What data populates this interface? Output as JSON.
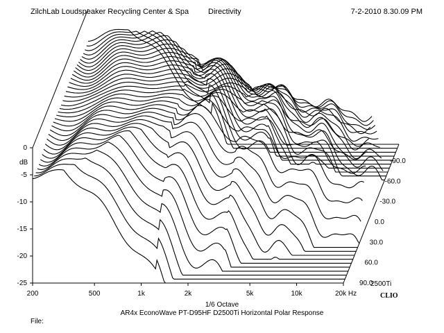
{
  "header": {
    "left": "ZilchLab Loudspeaker Recycling Center & Spa",
    "center": "Directivity",
    "right": "7-2-2010 8.30.09 PM"
  },
  "footer": {
    "octave": "1/6 Octave",
    "caption": "AR4x EconoWave PT-D95HF D2500Ti Horizontal Polar Response",
    "file_label": "File:"
  },
  "brand": "CLIO",
  "chart_data": {
    "type": "waterfall",
    "ylabel": "dB",
    "y_ticks": [
      "0",
      "-5",
      "-10",
      "-15",
      "-20",
      "-25"
    ],
    "ylim": [
      -25,
      0
    ],
    "x_scale": "log",
    "x_ticks": [
      "200",
      "500",
      "1k",
      "2k",
      "5k",
      "10k",
      "20k Hz"
    ],
    "xlim": [
      200,
      20000
    ],
    "z_ticks": [
      "-90.0",
      "-60.0",
      "-30.0",
      "0.0",
      "30.0",
      "60.0",
      "90.0"
    ],
    "z_extra_label": "2500Ti",
    "z_range_deg": [
      -90,
      90
    ],
    "trace_step_deg": 5,
    "grid": false,
    "line_color": "#000000"
  }
}
